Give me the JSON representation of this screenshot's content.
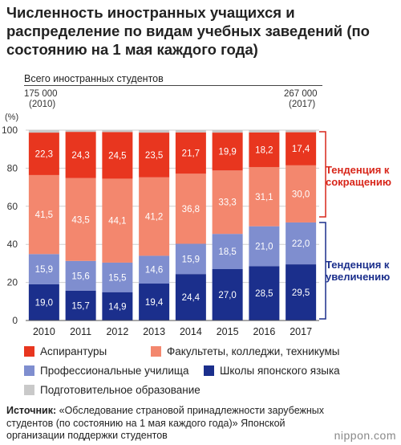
{
  "title": "Численность иностранных учащихся и распределение по видам учебных заведений (по состоянию на 1 мая каждого года)",
  "total_label": "Всего иностранных студентов",
  "total_start": {
    "value": "175 000",
    "year": "(2010)"
  },
  "total_end": {
    "value": "267 000",
    "year": "(2017)"
  },
  "colors": {
    "graduate": "#e8361f",
    "university": "#f3876e",
    "vocational": "#7f8ecf",
    "language": "#1b2f8c",
    "preparatory": "#c9c9c9",
    "red_annotation": "#d8261a",
    "blue_annotation": "#1b2f8c"
  },
  "chart_data": {
    "type": "bar",
    "stacked": true,
    "unit_label": "(%)",
    "categories": [
      "2010",
      "2011",
      "2012",
      "2013",
      "2014",
      "2015",
      "2016",
      "2017"
    ],
    "ylim": [
      0,
      100
    ],
    "yticks": [
      0,
      20,
      40,
      60,
      80,
      100
    ],
    "series": [
      {
        "name": "Школы японского языка",
        "color_key": "language",
        "values": [
          19.0,
          15.7,
          14.9,
          19.4,
          24.4,
          27.0,
          28.5,
          29.5
        ],
        "labels": [
          "19,0",
          "15,7",
          "14,9",
          "19,4",
          "24,4",
          "27,0",
          "28,5",
          "29,5"
        ]
      },
      {
        "name": "Профессиональные училища",
        "color_key": "vocational",
        "values": [
          15.9,
          15.6,
          15.5,
          14.6,
          15.9,
          18.5,
          21.0,
          22.0
        ],
        "labels": [
          "15,9",
          "15,6",
          "15,5",
          "14,6",
          "15,9",
          "18,5",
          "21,0",
          "22,0"
        ]
      },
      {
        "name": "Факультеты, колледжи, техникумы",
        "color_key": "university",
        "values": [
          41.5,
          43.5,
          44.1,
          41.2,
          36.8,
          33.3,
          31.1,
          30.0
        ],
        "labels": [
          "41,5",
          "43,5",
          "44,1",
          "41,2",
          "36,8",
          "33,3",
          "31,1",
          "30,0"
        ]
      },
      {
        "name": "Аспирантуры",
        "color_key": "graduate",
        "values": [
          22.3,
          24.3,
          24.5,
          23.5,
          21.7,
          19.9,
          18.2,
          17.4
        ],
        "labels": [
          "22,3",
          "24,3",
          "24,5",
          "23,5",
          "21,7",
          "19,9",
          "18,2",
          "17,4"
        ]
      }
    ],
    "annotations": [
      {
        "text": "Тенденция к сокращению",
        "color_key": "red_annotation"
      },
      {
        "text": "Тенденция к увеличению",
        "color_key": "blue_annotation"
      }
    ]
  },
  "legend": [
    {
      "label": "Аспирантуры",
      "color_key": "graduate"
    },
    {
      "label": "Факультеты, колледжи, техникумы",
      "color_key": "university"
    },
    {
      "label": "Профессиональные училища",
      "color_key": "vocational"
    },
    {
      "label": "Школы японского языка",
      "color_key": "language"
    },
    {
      "label": "Подготовительное образование",
      "color_key": "preparatory"
    }
  ],
  "source": {
    "label": "Источник:",
    "text": "«Обследование страновой принадлежности зарубежных студентов (по состоянию на 1 мая каждого года)» Японской организации поддержки студентов"
  },
  "brand": "nippon.com"
}
